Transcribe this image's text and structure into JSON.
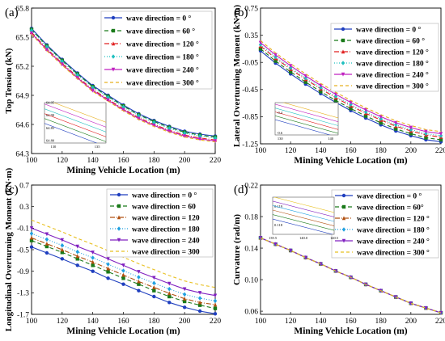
{
  "chart_data": [
    {
      "type": "line",
      "panel_label": "(a)",
      "xlabel": "Mining Vehicle Location (m)",
      "ylabel": "Top Tension (kN)",
      "xlim": [
        100,
        220
      ],
      "ylim": [
        64.3,
        65.8
      ],
      "xticks": [
        100,
        120,
        140,
        160,
        180,
        200,
        220
      ],
      "xtick_labels": [
        "100",
        "120",
        "140",
        "160",
        "180",
        "200",
        "220"
      ],
      "yticks": [
        64.3,
        64.6,
        64.9,
        65.2,
        65.5,
        65.8
      ],
      "ytick_labels": [
        "64.3",
        "64.6",
        "64.9",
        "65.2",
        "65.5",
        "65.8"
      ],
      "x": [
        100,
        110,
        120,
        130,
        140,
        150,
        160,
        170,
        180,
        190,
        200,
        210,
        220
      ],
      "legend": "top-right",
      "series": [
        {
          "name": "wave direction = 0 °",
          "color": "#1f3fbf",
          "dash": "",
          "marker": "circle",
          "values": [
            65.59,
            65.42,
            65.27,
            65.13,
            65.0,
            64.9,
            64.8,
            64.71,
            64.64,
            64.58,
            64.53,
            64.5,
            64.48
          ]
        },
        {
          "name": "wave direction = 60 °",
          "color": "#1a7a1a",
          "dash": "5,3",
          "marker": "square",
          "values": [
            65.58,
            65.41,
            65.26,
            65.12,
            64.99,
            64.89,
            64.79,
            64.7,
            64.63,
            64.57,
            64.52,
            64.49,
            64.47
          ]
        },
        {
          "name": "wave direction = 120 °",
          "color": "#e02020",
          "dash": "6,2,1,2",
          "marker": "triangle",
          "values": [
            65.55,
            65.38,
            65.23,
            65.09,
            64.96,
            64.86,
            64.76,
            64.67,
            64.6,
            64.54,
            64.49,
            64.46,
            64.44
          ]
        },
        {
          "name": "wave direction = 180 °",
          "color": "#20c0c0",
          "dash": "1,2",
          "marker": "diamond",
          "values": [
            65.57,
            65.4,
            65.25,
            65.11,
            64.98,
            64.88,
            64.78,
            64.69,
            64.62,
            64.56,
            64.51,
            64.48,
            64.46
          ]
        },
        {
          "name": "wave direction = 240 °",
          "color": "#c020c0",
          "dash": "",
          "marker": "triangle-down",
          "values": [
            65.54,
            65.37,
            65.22,
            65.08,
            64.95,
            64.85,
            64.75,
            64.66,
            64.59,
            64.53,
            64.48,
            64.45,
            64.43
          ]
        },
        {
          "name": "wave direction = 300 °",
          "color": "#e8b020",
          "dash": "4,3",
          "marker": "none",
          "values": [
            65.53,
            65.36,
            65.21,
            65.07,
            64.94,
            64.84,
            64.74,
            64.65,
            64.58,
            64.52,
            64.47,
            64.44,
            64.42
          ]
        }
      ],
      "inset": {
        "xlim": [
          129,
          136
        ],
        "ylim": [
          64.79,
          64.95
        ],
        "xticks": [
          130,
          135
        ],
        "xtick_labels": [
          "130",
          "135"
        ],
        "yticks": [
          64.8,
          64.85,
          64.9,
          64.95
        ],
        "ytick_labels": [
          "64.80",
          "64.85",
          "64.90",
          "64.95"
        ]
      }
    },
    {
      "type": "line",
      "panel_label": "(b)",
      "xlabel": "Mining Vehicle Location (m)",
      "ylabel": "Lateral Overturning Moment (kN·m)",
      "xlim": [
        100,
        220
      ],
      "ylim": [
        -1.25,
        0.75
      ],
      "xticks": [
        100,
        120,
        140,
        160,
        180,
        200,
        220
      ],
      "xtick_labels": [
        "100",
        "120",
        "140",
        "160",
        "180",
        "200",
        "220"
      ],
      "yticks": [
        -1.25,
        -0.85,
        -0.45,
        -0.05,
        0.35,
        0.75
      ],
      "ytick_labels": [
        "-1.25",
        "-0.85",
        "-0.45",
        "-0.05",
        "0.35",
        "0.75"
      ],
      "x": [
        100,
        110,
        120,
        130,
        140,
        150,
        160,
        170,
        180,
        190,
        200,
        210,
        220
      ],
      "legend": "top-right",
      "series": [
        {
          "name": "wave direction = 0 °",
          "color": "#1f3fbf",
          "dash": "",
          "marker": "circle",
          "values": [
            0.12,
            -0.06,
            -0.22,
            -0.37,
            -0.51,
            -0.64,
            -0.76,
            -0.87,
            -0.97,
            -1.06,
            -1.13,
            -1.19,
            -1.22
          ]
        },
        {
          "name": "wave direction = 60 °",
          "color": "#1a7a1a",
          "dash": "5,3",
          "marker": "square",
          "values": [
            0.15,
            -0.03,
            -0.19,
            -0.34,
            -0.48,
            -0.61,
            -0.73,
            -0.84,
            -0.94,
            -1.03,
            -1.1,
            -1.16,
            -1.19
          ]
        },
        {
          "name": "wave direction = 120 °",
          "color": "#e02020",
          "dash": "6,2,1,2",
          "marker": "triangle",
          "values": [
            0.19,
            0.01,
            -0.15,
            -0.3,
            -0.44,
            -0.57,
            -0.69,
            -0.8,
            -0.9,
            -0.99,
            -1.06,
            -1.12,
            -1.15
          ]
        },
        {
          "name": "wave direction = 180 °",
          "color": "#20c0c0",
          "dash": "1,2",
          "marker": "diamond",
          "values": [
            0.21,
            0.03,
            -0.13,
            -0.28,
            -0.42,
            -0.55,
            -0.67,
            -0.78,
            -0.88,
            -0.97,
            -1.04,
            -1.1,
            -1.13
          ]
        },
        {
          "name": "wave direction = 240 °",
          "color": "#c020c0",
          "dash": "",
          "marker": "triangle-down",
          "values": [
            0.24,
            0.06,
            -0.1,
            -0.25,
            -0.39,
            -0.52,
            -0.64,
            -0.75,
            -0.85,
            -0.94,
            -1.01,
            -1.07,
            -1.1
          ]
        },
        {
          "name": "wave direction = 300 °",
          "color": "#e8b020",
          "dash": "4,3",
          "marker": "none",
          "values": [
            0.27,
            0.09,
            -0.07,
            -0.22,
            -0.36,
            -0.49,
            -0.61,
            -0.72,
            -0.82,
            -0.91,
            -0.98,
            -1.04,
            -1.07
          ]
        }
      ],
      "inset": {
        "xlim": [
          129,
          141.5
        ],
        "ylim": [
          -0.62,
          -0.3
        ],
        "xticks": [
          130,
          140
        ],
        "xtick_labels": [
          "130",
          "140"
        ],
        "yticks": [
          -0.4,
          -0.6
        ],
        "ytick_labels": [
          "-0.4",
          "-0.6"
        ]
      }
    },
    {
      "type": "line",
      "panel_label": "(c)",
      "xlabel": "Mining Vehicle Location (m)",
      "ylabel": "Longitudinal Overturning Moment (kN·m)",
      "xlim": [
        100,
        220
      ],
      "ylim": [
        -1.7,
        0.7
      ],
      "xticks": [
        100,
        120,
        140,
        160,
        180,
        200,
        220
      ],
      "xtick_labels": [
        "100",
        "120",
        "140",
        "160",
        "180",
        "200",
        "220"
      ],
      "yticks": [
        -1.7,
        -1.3,
        -0.9,
        -0.5,
        -0.1,
        0.3,
        0.7
      ],
      "ytick_labels": [
        "-1.7",
        "-1.3",
        "-0.9",
        "-0.5",
        "-0.1",
        "0.3",
        "0.7"
      ],
      "x": [
        100,
        110,
        120,
        130,
        140,
        150,
        160,
        170,
        180,
        190,
        200,
        210,
        220
      ],
      "legend": "top-right",
      "series": [
        {
          "name": "wave direction = 0 °",
          "color": "#1f3fbf",
          "dash": "",
          "marker": "circle",
          "values": [
            -0.45,
            -0.56,
            -0.67,
            -0.79,
            -0.9,
            -1.03,
            -1.14,
            -1.26,
            -1.37,
            -1.48,
            -1.57,
            -1.64,
            -1.69
          ]
        },
        {
          "name": "wave direction = 60",
          "color": "#1a7a1a",
          "dash": "5,3",
          "marker": "square",
          "values": [
            -0.33,
            -0.44,
            -0.55,
            -0.67,
            -0.79,
            -0.91,
            -1.03,
            -1.14,
            -1.26,
            -1.37,
            -1.46,
            -1.53,
            -1.59
          ]
        },
        {
          "name": "wave direction = 120",
          "color": "#b05010",
          "dash": "6,2,1,2",
          "marker": "triangle",
          "values": [
            -0.28,
            -0.39,
            -0.5,
            -0.62,
            -0.73,
            -0.85,
            -0.97,
            -1.09,
            -1.2,
            -1.31,
            -1.41,
            -1.48,
            -1.52
          ]
        },
        {
          "name": "wave direction = 180",
          "color": "#20a0e0",
          "dash": "1,2",
          "marker": "diamond",
          "values": [
            -0.2,
            -0.31,
            -0.42,
            -0.54,
            -0.65,
            -0.77,
            -0.89,
            -1.01,
            -1.12,
            -1.23,
            -1.33,
            -1.4,
            -1.45
          ]
        },
        {
          "name": "wave direction = 240",
          "color": "#8020c0",
          "dash": "",
          "marker": "triangle-down",
          "values": [
            -0.1,
            -0.21,
            -0.32,
            -0.44,
            -0.55,
            -0.67,
            -0.79,
            -0.91,
            -1.02,
            -1.13,
            -1.23,
            -1.3,
            -1.35
          ]
        },
        {
          "name": "wave direction = 300",
          "color": "#e8c020",
          "dash": "4,3",
          "marker": "none",
          "values": [
            0.05,
            -0.06,
            -0.17,
            -0.29,
            -0.4,
            -0.52,
            -0.64,
            -0.76,
            -0.87,
            -0.98,
            -1.08,
            -1.15,
            -1.2
          ]
        }
      ]
    },
    {
      "type": "line",
      "panel_label": "(d)",
      "xlabel": "Mining Vehicle Location (m)",
      "ylabel": "Curvature (rad/m)",
      "xlim": [
        100,
        220
      ],
      "ylim": [
        0.056,
        0.22
      ],
      "xticks": [
        100,
        120,
        140,
        160,
        180,
        200,
        220
      ],
      "xtick_labels": [
        "100",
        "120",
        "140",
        "160",
        "180",
        "200",
        "220"
      ],
      "yticks": [
        0.06,
        0.1,
        0.14,
        0.18,
        0.22
      ],
      "ytick_labels": [
        "0.06",
        "0.10",
        "0.14",
        "0.18",
        "0.22"
      ],
      "x": [
        100,
        110,
        120,
        130,
        140,
        150,
        160,
        170,
        180,
        190,
        200,
        210,
        220
      ],
      "legend": "top-right",
      "series": [
        {
          "name": "wave direction = 0 °",
          "color": "#1f3fbf",
          "dash": "",
          "marker": "circle",
          "values": [
            0.153,
            0.145,
            0.137,
            0.128,
            0.12,
            0.111,
            0.103,
            0.094,
            0.086,
            0.078,
            0.07,
            0.064,
            0.058
          ]
        },
        {
          "name": "wave direction = 60°",
          "color": "#1a7a1a",
          "dash": "5,3",
          "marker": "square",
          "values": [
            0.153,
            0.145,
            0.137,
            0.128,
            0.12,
            0.111,
            0.103,
            0.094,
            0.086,
            0.078,
            0.07,
            0.064,
            0.058
          ]
        },
        {
          "name": "wave direction = 120 °",
          "color": "#b05010",
          "dash": "6,2,1,2",
          "marker": "triangle",
          "values": [
            0.153,
            0.145,
            0.137,
            0.128,
            0.12,
            0.111,
            0.103,
            0.094,
            0.086,
            0.078,
            0.07,
            0.064,
            0.058
          ]
        },
        {
          "name": "wave direction = 180 °",
          "color": "#20a0e0",
          "dash": "1,2",
          "marker": "diamond",
          "values": [
            0.153,
            0.145,
            0.137,
            0.128,
            0.12,
            0.111,
            0.103,
            0.094,
            0.086,
            0.078,
            0.07,
            0.064,
            0.058
          ]
        },
        {
          "name": "wave direction = 240 °",
          "color": "#8020c0",
          "dash": "",
          "marker": "triangle-down",
          "values": [
            0.153,
            0.145,
            0.137,
            0.128,
            0.12,
            0.111,
            0.103,
            0.094,
            0.086,
            0.078,
            0.07,
            0.064,
            0.058
          ]
        },
        {
          "name": "wave direction = 300 °",
          "color": "#e8c020",
          "dash": "4,3",
          "marker": "none",
          "values": [
            0.153,
            0.145,
            0.137,
            0.128,
            0.12,
            0.111,
            0.103,
            0.094,
            0.086,
            0.078,
            0.07,
            0.064,
            0.058
          ]
        }
      ],
      "inset": {
        "xlim": [
          139.5,
          140.5
        ],
        "ylim": [
          0.1175,
          0.1195
        ],
        "xticks": [
          139.5,
          140.0,
          140.5
        ],
        "xtick_labels": [
          "139.5",
          "140.0",
          "140.5"
        ],
        "yticks": [
          0.119,
          0.118
        ],
        "ytick_labels": [
          "0.119",
          "0.118"
        ]
      }
    }
  ]
}
